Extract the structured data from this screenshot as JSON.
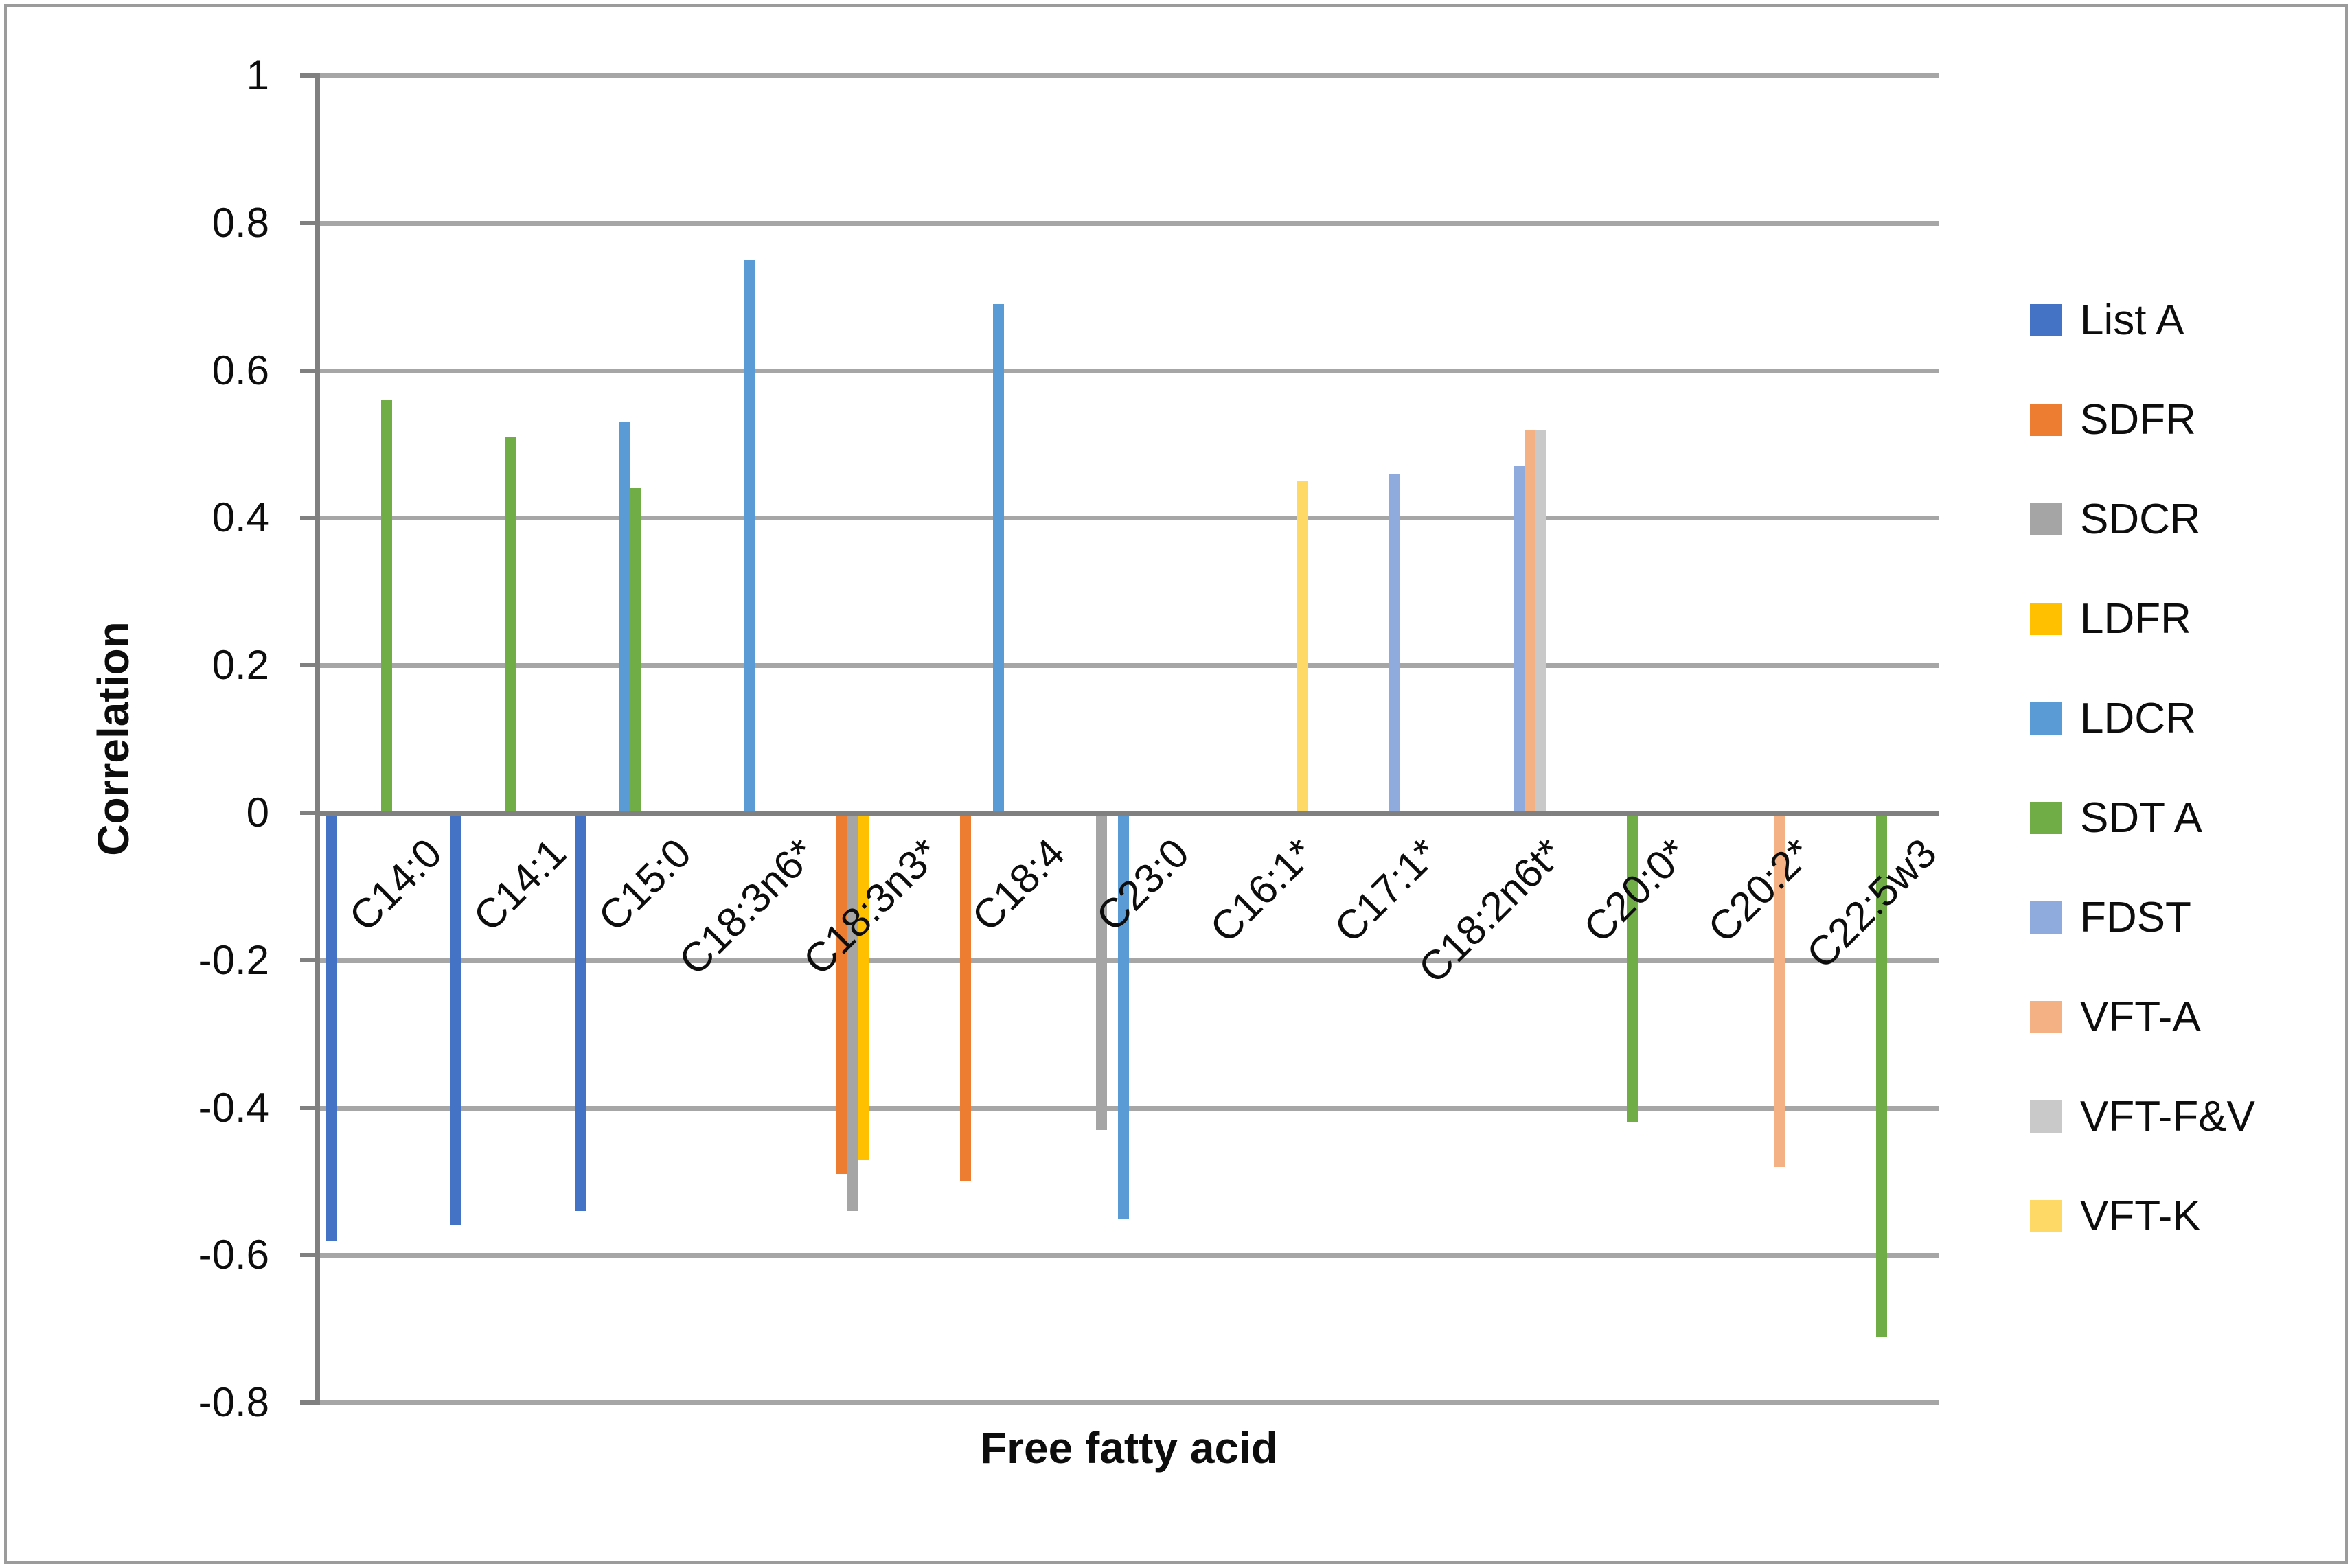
{
  "chart_data": {
    "type": "bar",
    "title": "",
    "xlabel": "Free fatty acid",
    "ylabel": "Correlation",
    "ylim": [
      -0.8,
      1
    ],
    "ytick_step": 0.2,
    "ytick_labels": [
      "1",
      "0.8",
      "0.6",
      "0.4",
      "0.2",
      "0",
      "-0.2",
      "-0.4",
      "-0.6",
      "-0.8"
    ],
    "grid": true,
    "legend_position": "right",
    "categories": [
      "C14:0",
      "C14:1",
      "C15:0",
      "C18:3n6*",
      "C18:3n3*",
      "C18:4",
      "C23:0",
      "C16:1*",
      "C17:1*",
      "C18:2n6t*",
      "C20:0*",
      "C20:2*",
      "C22:5w3"
    ],
    "series": [
      {
        "name": "List A",
        "color": "#4472C4",
        "values": [
          -0.58,
          -0.56,
          -0.54,
          null,
          null,
          null,
          null,
          null,
          null,
          null,
          null,
          null,
          null
        ]
      },
      {
        "name": "SDFR",
        "color": "#ED7D31",
        "values": [
          null,
          null,
          null,
          null,
          -0.49,
          -0.5,
          null,
          null,
          null,
          null,
          null,
          null,
          null
        ]
      },
      {
        "name": "SDCR",
        "color": "#A5A5A5",
        "values": [
          null,
          null,
          null,
          null,
          -0.54,
          null,
          -0.43,
          null,
          null,
          null,
          null,
          null,
          null
        ]
      },
      {
        "name": "LDFR",
        "color": "#FFC000",
        "values": [
          null,
          null,
          null,
          null,
          -0.47,
          null,
          null,
          null,
          null,
          null,
          null,
          null,
          null
        ]
      },
      {
        "name": "LDCR",
        "color": "#5B9BD5",
        "values": [
          null,
          null,
          0.53,
          0.75,
          null,
          0.69,
          -0.55,
          null,
          null,
          null,
          null,
          null,
          null
        ]
      },
      {
        "name": "SDT A",
        "color": "#70AD47",
        "values": [
          0.56,
          0.51,
          0.44,
          null,
          null,
          null,
          null,
          null,
          null,
          null,
          -0.42,
          null,
          -0.71
        ]
      },
      {
        "name": "FDST",
        "color": "#8FAADC",
        "values": [
          null,
          null,
          null,
          null,
          null,
          null,
          null,
          null,
          0.46,
          0.47,
          null,
          null,
          null
        ]
      },
      {
        "name": "VFT-A",
        "color": "#F4B183",
        "values": [
          null,
          null,
          null,
          null,
          null,
          null,
          null,
          null,
          null,
          0.52,
          null,
          -0.48,
          null
        ]
      },
      {
        "name": "VFT-F&V",
        "color": "#C9C9C9",
        "values": [
          null,
          null,
          null,
          null,
          null,
          null,
          null,
          null,
          null,
          0.52,
          null,
          null,
          null
        ]
      },
      {
        "name": "VFT-K",
        "color": "#FFD966",
        "values": [
          null,
          null,
          null,
          null,
          null,
          null,
          null,
          0.45,
          null,
          null,
          null,
          null,
          null
        ]
      }
    ],
    "gridline_color": "#A6A6A6",
    "axis_color": "#808080",
    "text_color": "#0d0d0d"
  }
}
